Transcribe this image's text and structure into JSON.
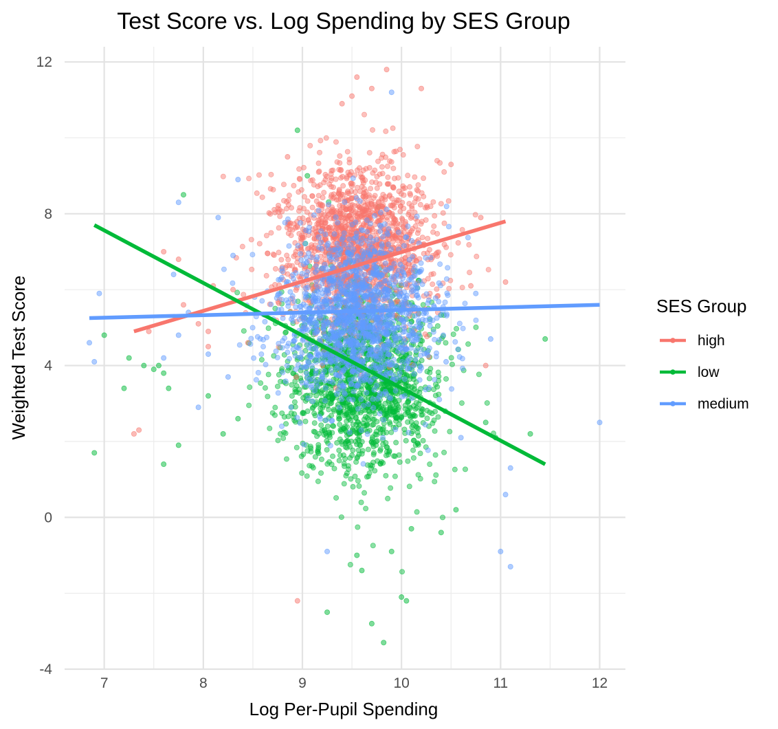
{
  "chart_data": {
    "type": "scatter",
    "title": "Test Score vs. Log Spending by SES Group",
    "xlabel": "Log Per-Pupil Spending",
    "ylabel": "Weighted Test Score",
    "xlim": [
      6.6,
      12.26
    ],
    "ylim": [
      -4,
      12.4
    ],
    "x_ticks": [
      7,
      8,
      9,
      10,
      11,
      12
    ],
    "y_ticks": [
      -4,
      0,
      4,
      8,
      12
    ],
    "x_tick_labels": [
      "7",
      "8",
      "9",
      "10",
      "11",
      "12"
    ],
    "y_tick_labels": [
      "-4",
      "0",
      "4",
      "8",
      "12"
    ],
    "grid": true,
    "legend": {
      "title": "SES Group",
      "position": "right",
      "entries": [
        "high",
        "low",
        "medium"
      ]
    },
    "series": [
      {
        "name": "high",
        "color": "#F8766D",
        "points_shown": "approx. 5000 jittered points centered near x=9.6, y=7.2",
        "cluster": {
          "x_mean": 9.55,
          "x_sd": 0.38,
          "y_mean": 7.2,
          "y_sd": 1.05
        },
        "outliers": [
          [
            7.3,
            2.2
          ],
          [
            7.35,
            2.3
          ],
          [
            7.45,
            4.9
          ],
          [
            7.6,
            7.0
          ],
          [
            7.75,
            6.8
          ],
          [
            7.8,
            5.6
          ],
          [
            7.95,
            5.1
          ],
          [
            8.05,
            4.9
          ],
          [
            8.05,
            4.5
          ],
          [
            8.1,
            6.1
          ],
          [
            8.3,
            6.0
          ],
          [
            8.45,
            4.6
          ],
          [
            8.85,
            9.5
          ],
          [
            8.95,
            -2.2
          ],
          [
            9.4,
            10.9
          ],
          [
            9.5,
            11.1
          ],
          [
            9.55,
            11.6
          ],
          [
            9.7,
            11.3
          ],
          [
            9.85,
            11.8
          ],
          [
            10.2,
            11.3
          ],
          [
            10.5,
            9.3
          ],
          [
            10.7,
            6.1
          ],
          [
            10.8,
            7.9
          ],
          [
            10.85,
            4.0
          ],
          [
            11.05,
            6.2
          ]
        ],
        "regression_line": {
          "x": [
            7.3,
            11.05
          ],
          "y": [
            4.9,
            7.8
          ]
        }
      },
      {
        "name": "low",
        "color": "#00BA38",
        "points_shown": "approx. 5000 jittered points centered near x=9.6, y=3.5",
        "cluster": {
          "x_mean": 9.6,
          "x_sd": 0.38,
          "y_mean": 3.6,
          "y_sd": 1.2
        },
        "outliers": [
          [
            6.9,
            1.7
          ],
          [
            7.0,
            4.8
          ],
          [
            7.2,
            3.4
          ],
          [
            7.25,
            4.2
          ],
          [
            7.4,
            4.0
          ],
          [
            7.5,
            3.9
          ],
          [
            7.55,
            4.0
          ],
          [
            7.6,
            3.8
          ],
          [
            7.6,
            1.4
          ],
          [
            7.65,
            3.4
          ],
          [
            7.75,
            1.9
          ],
          [
            7.8,
            8.5
          ],
          [
            8.05,
            3.2
          ],
          [
            8.2,
            2.2
          ],
          [
            8.35,
            2.6
          ],
          [
            8.95,
            10.2
          ],
          [
            9.05,
            9.0
          ],
          [
            9.25,
            -2.5
          ],
          [
            9.55,
            -1.0
          ],
          [
            9.6,
            -1.4
          ],
          [
            9.7,
            -2.8
          ],
          [
            9.82,
            -3.3
          ],
          [
            9.9,
            -0.9
          ],
          [
            10.0,
            -2.1
          ],
          [
            10.05,
            -2.2
          ],
          [
            10.1,
            -0.3
          ],
          [
            10.4,
            -0.4
          ],
          [
            10.55,
            0.2
          ],
          [
            10.85,
            2.5
          ],
          [
            10.95,
            2.1
          ],
          [
            11.3,
            2.2
          ],
          [
            11.45,
            4.7
          ]
        ],
        "regression_line": {
          "x": [
            6.9,
            11.45
          ],
          "y": [
            7.7,
            1.4
          ]
        }
      },
      {
        "name": "medium",
        "color": "#619CFF",
        "points_shown": "approx. 5000 jittered points centered near x=9.6, y=5.3",
        "cluster": {
          "x_mean": 9.55,
          "x_sd": 0.38,
          "y_mean": 5.3,
          "y_sd": 1.1
        },
        "outliers": [
          [
            6.85,
            4.6
          ],
          [
            6.9,
            4.1
          ],
          [
            6.95,
            5.9
          ],
          [
            7.6,
            4.2
          ],
          [
            7.7,
            6.4
          ],
          [
            7.75,
            4.8
          ],
          [
            7.75,
            8.3
          ],
          [
            7.85,
            5.4
          ],
          [
            7.95,
            2.9
          ],
          [
            8.05,
            4.3
          ],
          [
            8.15,
            7.9
          ],
          [
            8.25,
            3.7
          ],
          [
            8.3,
            6.9
          ],
          [
            8.35,
            8.9
          ],
          [
            9.25,
            -0.9
          ],
          [
            9.9,
            11.2
          ],
          [
            10.45,
            4.1
          ],
          [
            10.6,
            2.1
          ],
          [
            10.75,
            5.9
          ],
          [
            10.9,
            4.7
          ],
          [
            11.05,
            0.6
          ],
          [
            11.1,
            1.3
          ],
          [
            11.0,
            -0.9
          ],
          [
            11.1,
            -1.3
          ],
          [
            12.0,
            2.5
          ]
        ],
        "regression_line": {
          "x": [
            6.85,
            12.0
          ],
          "y": [
            5.25,
            5.6
          ]
        }
      }
    ]
  }
}
